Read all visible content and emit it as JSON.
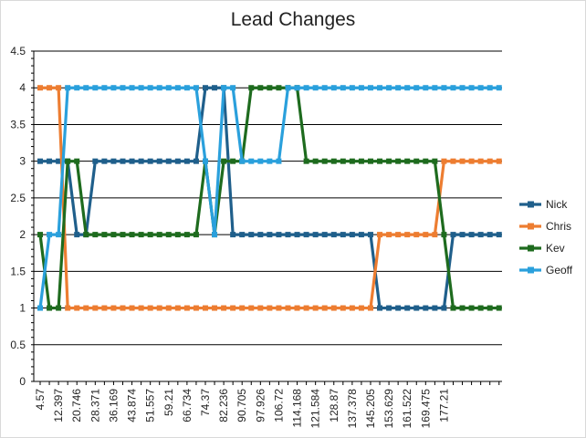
{
  "chart_data": {
    "type": "line",
    "title": "Lead Changes",
    "xlabel": "",
    "ylabel": "",
    "ylim": [
      0,
      4.5
    ],
    "y_ticks": [
      "0",
      "0.5",
      "1",
      "1.5",
      "2",
      "2.5",
      "3",
      "3.5",
      "4",
      "4.5"
    ],
    "x_tick_labels": [
      "4.57",
      "12.397",
      "20.746",
      "28.371",
      "36.169",
      "43.874",
      "51.557",
      "59.21",
      "66.734",
      "74.37",
      "82.236",
      "90.705",
      "97.926",
      "106.72",
      "114.168",
      "121.584",
      "128.87",
      "137.378",
      "145.205",
      "153.629",
      "161.522",
      "169.475",
      "177.21"
    ],
    "grid": "horizontal",
    "legend_position": "right",
    "point_count": 51,
    "series": [
      {
        "name": "Nick",
        "color": "#1f5f8b",
        "values": [
          3,
          3,
          3,
          3,
          2,
          2,
          3,
          3,
          3,
          3,
          3,
          3,
          3,
          3,
          3,
          3,
          3,
          3,
          4,
          4,
          4,
          2,
          2,
          2,
          2,
          2,
          2,
          2,
          2,
          2,
          2,
          2,
          2,
          2,
          2,
          2,
          2,
          1,
          1,
          1,
          1,
          1,
          1,
          1,
          1,
          2,
          2,
          2,
          2,
          2,
          2
        ]
      },
      {
        "name": "Chris",
        "color": "#ed7d31",
        "values": [
          4,
          4,
          4,
          1,
          1,
          1,
          1,
          1,
          1,
          1,
          1,
          1,
          1,
          1,
          1,
          1,
          1,
          1,
          1,
          1,
          1,
          1,
          1,
          1,
          1,
          1,
          1,
          1,
          1,
          1,
          1,
          1,
          1,
          1,
          1,
          1,
          1,
          2,
          2,
          2,
          2,
          2,
          2,
          2,
          3,
          3,
          3,
          3,
          3,
          3,
          3
        ]
      },
      {
        "name": "Kev",
        "color": "#1e6b1e",
        "values": [
          2,
          1,
          1,
          3,
          3,
          2,
          2,
          2,
          2,
          2,
          2,
          2,
          2,
          2,
          2,
          2,
          2,
          2,
          3,
          2,
          3,
          3,
          3,
          4,
          4,
          4,
          4,
          4,
          4,
          3,
          3,
          3,
          3,
          3,
          3,
          3,
          3,
          3,
          3,
          3,
          3,
          3,
          3,
          3,
          2,
          1,
          1,
          1,
          1,
          1,
          1
        ]
      },
      {
        "name": "Geoff",
        "color": "#2aa0dc",
        "values": [
          1,
          2,
          2,
          4,
          4,
          4,
          4,
          4,
          4,
          4,
          4,
          4,
          4,
          4,
          4,
          4,
          4,
          4,
          3,
          2,
          4,
          4,
          3,
          3,
          3,
          3,
          3,
          4,
          4,
          4,
          4,
          4,
          4,
          4,
          4,
          4,
          4,
          4,
          4,
          4,
          4,
          4,
          4,
          4,
          4,
          4,
          4,
          4,
          4,
          4,
          4
        ]
      }
    ]
  }
}
